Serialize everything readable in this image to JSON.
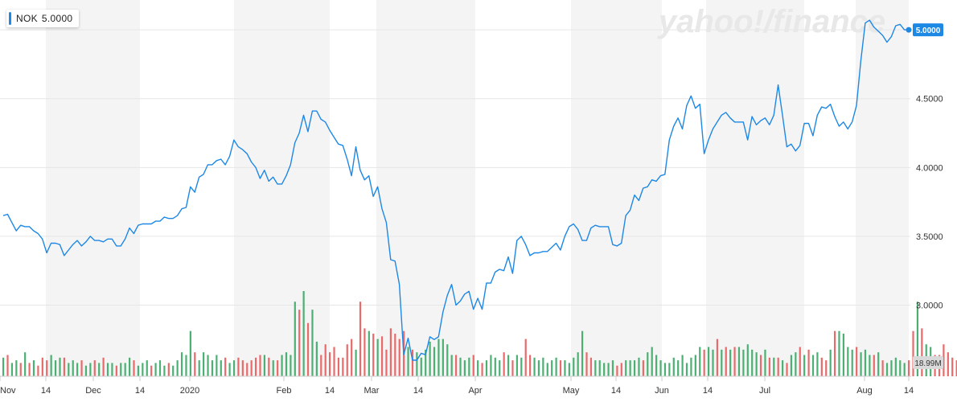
{
  "legend": {
    "symbol": "NOK",
    "value": "5.0000"
  },
  "watermark": "yahoo!/finance",
  "price_label": "5.0000",
  "volume_label": "18.99M",
  "colors": {
    "line": "#1e88e5",
    "up": "#4caf73",
    "down": "#e86a6a",
    "band": "#f4f4f4",
    "badge": "#1e88e5",
    "grid": "#e6e6e6"
  },
  "chart_data": {
    "type": "line",
    "ylim": [
      2.6,
      5.1
    ],
    "y_ticks": [
      "3.0000",
      "3.5000",
      "4.0000",
      "4.5000",
      "5.0000"
    ],
    "x_ticks": [
      "Nov",
      "14",
      "Dec",
      "14",
      "2020",
      "Feb",
      "14",
      "Mar",
      "14",
      "Apr",
      "May",
      "14",
      "Jun",
      "14",
      "Jul",
      "Aug",
      "14"
    ],
    "series": [
      {
        "values": [
          3.65,
          3.66,
          3.6,
          3.54,
          3.58,
          3.57,
          3.57,
          3.54,
          3.52,
          3.48,
          3.38,
          3.45,
          3.45,
          3.44,
          3.36,
          3.4,
          3.44,
          3.47,
          3.43,
          3.46,
          3.5,
          3.47,
          3.47,
          3.46,
          3.48,
          3.48,
          3.43,
          3.43,
          3.48,
          3.56,
          3.52,
          3.58,
          3.59,
          3.59,
          3.59,
          3.61,
          3.61,
          3.64,
          3.63,
          3.63,
          3.65,
          3.7,
          3.71,
          3.86,
          3.82,
          3.93,
          3.95,
          4.02,
          4.02,
          4.05,
          4.06,
          4.02,
          4.08,
          4.2,
          4.15,
          4.13,
          4.1,
          4.04,
          4.0,
          3.92,
          3.98,
          3.9,
          3.93,
          3.88,
          3.88,
          3.94,
          4.02,
          4.18,
          4.25,
          4.38,
          4.26,
          4.41,
          4.41,
          4.35,
          4.33,
          4.27,
          4.22,
          4.17,
          4.16,
          4.06,
          3.94,
          4.15,
          3.98,
          3.91,
          3.94,
          3.79,
          3.86,
          3.7,
          3.6,
          3.33,
          3.32,
          3.15,
          2.64,
          2.76,
          2.6,
          2.6,
          2.65,
          2.64,
          2.77,
          2.75,
          2.77,
          2.95,
          3.07,
          3.15,
          3.0,
          3.03,
          3.08,
          3.1,
          2.97,
          3.05,
          2.97,
          3.16,
          3.16,
          3.24,
          3.26,
          3.25,
          3.35,
          3.23,
          3.47,
          3.5,
          3.44,
          3.36,
          3.38,
          3.38,
          3.39,
          3.39,
          3.42,
          3.45,
          3.4,
          3.5,
          3.57,
          3.59,
          3.55,
          3.47,
          3.47,
          3.56,
          3.58,
          3.57,
          3.57,
          3.57,
          3.44,
          3.43,
          3.45,
          3.65,
          3.69,
          3.8,
          3.76,
          3.85,
          3.86,
          3.91,
          3.9,
          3.94,
          3.95,
          4.2,
          4.3,
          4.36,
          4.28,
          4.45,
          4.52,
          4.43,
          4.46,
          4.1,
          4.2,
          4.28,
          4.33,
          4.38,
          4.4,
          4.36,
          4.33,
          4.33,
          4.33,
          4.2,
          4.37,
          4.31,
          4.34,
          4.36,
          4.31,
          4.38,
          4.6,
          4.38,
          4.15,
          4.17,
          4.12,
          4.16,
          4.32,
          4.32,
          4.23,
          4.38,
          4.44,
          4.43,
          4.46,
          4.37,
          4.3,
          4.33,
          4.28,
          4.33,
          4.45,
          4.78,
          5.05,
          5.07,
          5.02,
          4.99,
          4.96,
          4.91,
          4.95,
          5.03,
          5.04,
          5.0,
          5.0
        ]
      }
    ],
    "volume": {
      "values": [
        7,
        8,
        5,
        6,
        5,
        9,
        5,
        6,
        4,
        7,
        6,
        8,
        6,
        7,
        7,
        5,
        6,
        5,
        6,
        4,
        5,
        6,
        5,
        7,
        5,
        5,
        4,
        5,
        5,
        7,
        6,
        4,
        5,
        6,
        4,
        5,
        6,
        4,
        5,
        4,
        6,
        9,
        8,
        17,
        9,
        6,
        9,
        8,
        6,
        8,
        6,
        7,
        5,
        6,
        7,
        6,
        5,
        6,
        7,
        8,
        8,
        7,
        6,
        6,
        8,
        9,
        8,
        28,
        25,
        32,
        20,
        25,
        13,
        8,
        12,
        9,
        11,
        7,
        7,
        12,
        14,
        10,
        28,
        18,
        17,
        16,
        14,
        15,
        10,
        18,
        16,
        14,
        17,
        11,
        10,
        9,
        7,
        10,
        13,
        11,
        14,
        14,
        12,
        8,
        8,
        7,
        6,
        7,
        8,
        6,
        5,
        6,
        8,
        7,
        6,
        9,
        8,
        6,
        8,
        7,
        14,
        8,
        7,
        6,
        7,
        5,
        6,
        7,
        6,
        6,
        5,
        7,
        9,
        17,
        9,
        7,
        6,
        6,
        5,
        5,
        6,
        4,
        5,
        6,
        6,
        6,
        7,
        6,
        9,
        11,
        8,
        6,
        5,
        5,
        7,
        6,
        8,
        5,
        7,
        8,
        11,
        10,
        11,
        10,
        14,
        10,
        11,
        10,
        11,
        11,
        10,
        12,
        10,
        9,
        8,
        10,
        7,
        7,
        7,
        6,
        5,
        8,
        9,
        11,
        8,
        10,
        8,
        9,
        7,
        6,
        10,
        17,
        17,
        16,
        11,
        10,
        11,
        9,
        10,
        8,
        8,
        9,
        6,
        5,
        6,
        7,
        6,
        5,
        6,
        17,
        28,
        18,
        12,
        11,
        8,
        8,
        12,
        9,
        7,
        6,
        5,
        3
      ],
      "direction": [
        1,
        0,
        1,
        1,
        0,
        1,
        0,
        1,
        0,
        0,
        0,
        1,
        1,
        1,
        0,
        1,
        1,
        1,
        0,
        1,
        1,
        0,
        1,
        0,
        1,
        1,
        0,
        1,
        1,
        1,
        0,
        1,
        1,
        1,
        0,
        1,
        1,
        1,
        0,
        1,
        1,
        1,
        1,
        1,
        0,
        1,
        1,
        1,
        1,
        1,
        1,
        0,
        1,
        1,
        0,
        0,
        0,
        0,
        0,
        0,
        1,
        0,
        1,
        0,
        1,
        1,
        1,
        1,
        0,
        1,
        0,
        1,
        1,
        0,
        0,
        0,
        0,
        0,
        0,
        0,
        0,
        1,
        0,
        0,
        1,
        0,
        1,
        0,
        0,
        0,
        0,
        0,
        0,
        1,
        0,
        1,
        1,
        1,
        1,
        1,
        1,
        1,
        1,
        1,
        0,
        1,
        1,
        1,
        0,
        1,
        0,
        1,
        1,
        1,
        1,
        0,
        1,
        0,
        1,
        1,
        0,
        0,
        1,
        1,
        1,
        1,
        1,
        1,
        0,
        1,
        1,
        1,
        1,
        1,
        0,
        0,
        1,
        1,
        1,
        1,
        1,
        0,
        0,
        1,
        1,
        1,
        1,
        0,
        1,
        1,
        1,
        1,
        1,
        1,
        1,
        1,
        1,
        1,
        1,
        1,
        1,
        0,
        1,
        1,
        0,
        1,
        0,
        1,
        0,
        1,
        1,
        1,
        1,
        1,
        0,
        1,
        0,
        1,
        0,
        1,
        0,
        1,
        1,
        0,
        1,
        0,
        1,
        1,
        0,
        0,
        1,
        0,
        1,
        1,
        1,
        1,
        0,
        1,
        1,
        1,
        0,
        1,
        0,
        1,
        1,
        1,
        1,
        1,
        0,
        0,
        1,
        0,
        1,
        1,
        0,
        0
      ]
    }
  }
}
